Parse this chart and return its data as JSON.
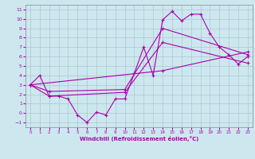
{
  "xlabel": "Windchill (Refroidissement éolien,°C)",
  "background_color": "#cce8ee",
  "line_color": "#aa00aa",
  "xlim": [
    -0.5,
    23.5
  ],
  "ylim": [
    -1.5,
    11.5
  ],
  "yticks": [
    -1,
    0,
    1,
    2,
    3,
    4,
    5,
    6,
    7,
    8,
    9,
    10,
    11
  ],
  "xticks": [
    0,
    1,
    2,
    3,
    4,
    5,
    6,
    7,
    8,
    9,
    10,
    11,
    12,
    13,
    14,
    15,
    16,
    17,
    18,
    19,
    20,
    21,
    22,
    23
  ],
  "line1_x": [
    0,
    1,
    2,
    3,
    4,
    5,
    6,
    7,
    8,
    9,
    10,
    11,
    12,
    13,
    14,
    15,
    16,
    17,
    18,
    19,
    20,
    21,
    22,
    23
  ],
  "line1_y": [
    3.0,
    4.0,
    1.8,
    1.8,
    1.5,
    -0.2,
    -1.0,
    0.1,
    -0.2,
    1.5,
    1.5,
    4.2,
    7.0,
    4.0,
    9.9,
    10.8,
    9.8,
    10.5,
    10.5,
    8.5,
    7.0,
    6.2,
    5.2,
    6.0
  ],
  "line2_x": [
    0,
    2,
    10,
    14,
    23
  ],
  "line2_y": [
    3.0,
    2.3,
    2.5,
    9.0,
    6.2
  ],
  "line3_x": [
    0,
    2,
    10,
    14,
    23
  ],
  "line3_y": [
    3.0,
    1.8,
    2.2,
    7.5,
    5.3
  ],
  "line4_x": [
    0,
    14,
    23
  ],
  "line4_y": [
    3.0,
    4.5,
    6.5
  ]
}
